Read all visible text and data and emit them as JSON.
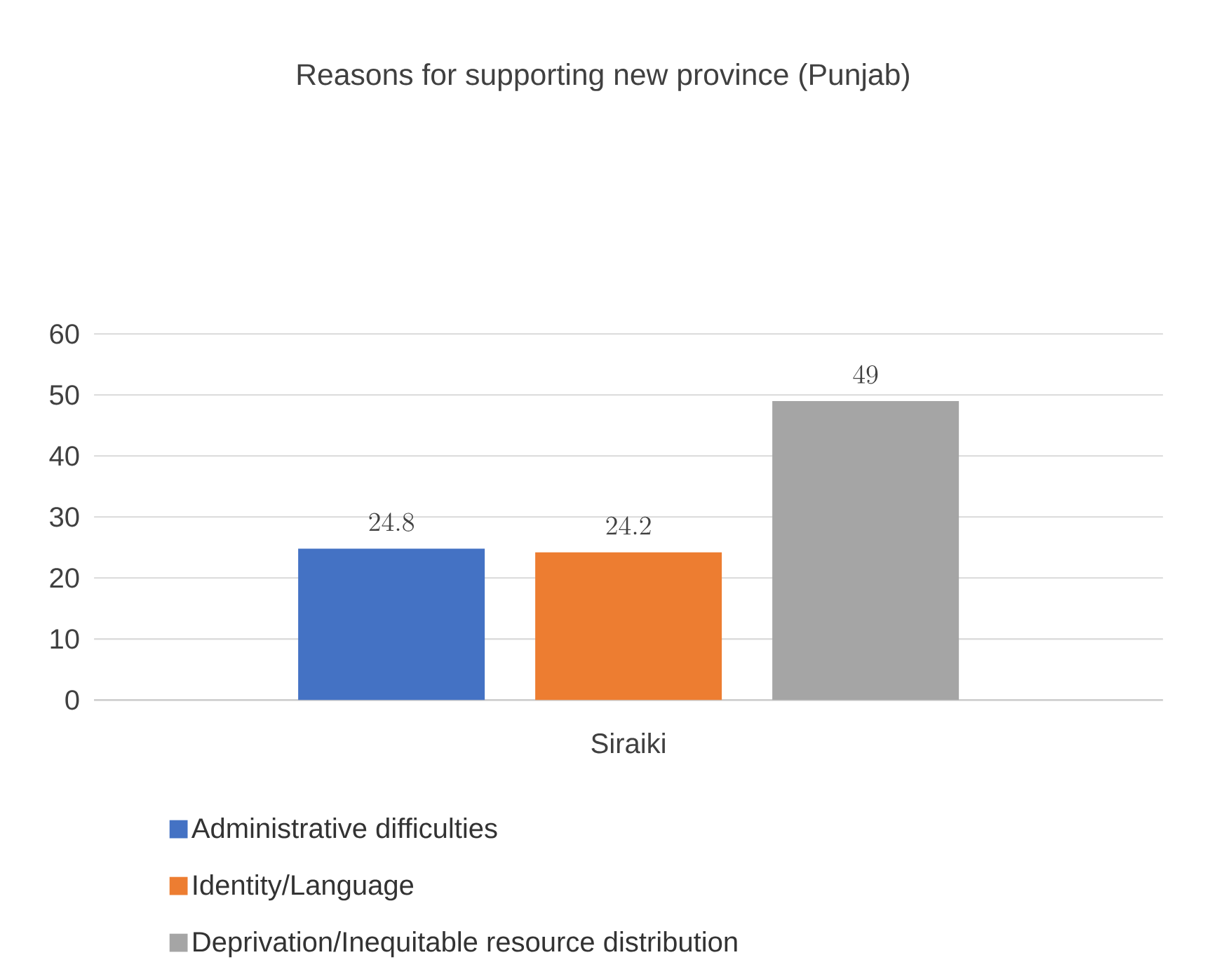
{
  "chart_data": {
    "type": "bar",
    "title": "Reasons for supporting new province (Punjab)",
    "categories": [
      "Siraiki"
    ],
    "series": [
      {
        "name": "Administrative difficulties",
        "color": "#4472c4",
        "values": [
          24.8
        ]
      },
      {
        "name": "Identity/Language",
        "color": "#ed7d31",
        "values": [
          24.2
        ]
      },
      {
        "name": "Deprivation/Inequitable resource distribution",
        "color": "#a5a5a5",
        "values": [
          49
        ]
      }
    ],
    "ylim": [
      0,
      60
    ],
    "yticks": [
      0,
      10,
      20,
      30,
      40,
      50,
      60
    ],
    "grid": "y",
    "legend": "bottom",
    "data_labels": true
  }
}
